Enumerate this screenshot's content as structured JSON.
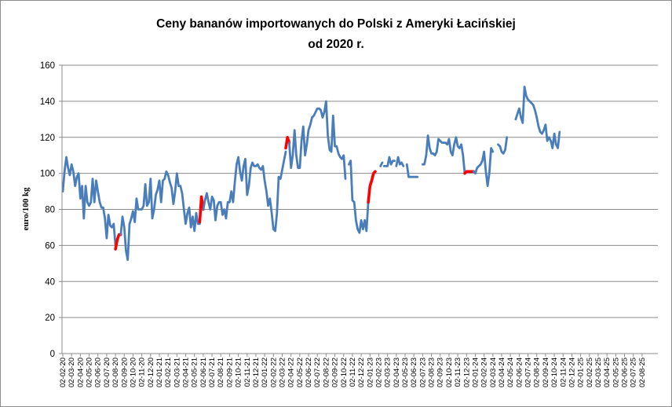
{
  "chart_data": {
    "type": "line",
    "title_lines": [
      "Ceny bananów importowanych do Polski z Ameryki Łacińskiej",
      "od 2020 r."
    ],
    "ylabel": "euro/100 kg",
    "xlabel": "",
    "ylim": [
      0,
      160
    ],
    "yticks": [
      0,
      20,
      40,
      60,
      80,
      100,
      120,
      140,
      160
    ],
    "grid": "horizontal",
    "legend": "none",
    "colors": {
      "line": "#4a7ebb",
      "highlight": "#ff0000",
      "grid": "#8c8c8c",
      "axis": "#8c8c8c"
    },
    "x_tick_labels": [
      "02-02-20",
      "02-03-20",
      "02-04-20",
      "02-05-20",
      "02-06-20",
      "02-07-20",
      "02-08-20",
      "02-09-20",
      "02-10-20",
      "02-11-20",
      "02-12-20",
      "02-01-21",
      "02-02-21",
      "02-03-21",
      "02-04-21",
      "02-05-21",
      "02-06-21",
      "02-07-21",
      "02-08-21",
      "02-09-21",
      "02-10-21",
      "02-11-21",
      "02-12-21",
      "02-01-22",
      "02-02-22",
      "02-03-22",
      "02-04-22",
      "02-05-22",
      "02-06-22",
      "02-07-22",
      "02-08-22",
      "02-09-22",
      "02-10-22",
      "02-11-22",
      "02-12-22",
      "02-01-23",
      "02-02-23",
      "02-03-23",
      "02-04-23",
      "02-05-23",
      "02-06-23",
      "02-07-23",
      "02-08-23",
      "02-09-23",
      "02-10-23",
      "02-11-23",
      "02-12-23",
      "02-01-24",
      "02-02-24",
      "02-03-24",
      "02-04-24",
      "02-05-24",
      "02-06-24",
      "02-07-24",
      "02-08-24",
      "02-09-24",
      "02-10-24",
      "02-11-24",
      "02-12-24",
      "02-01-25",
      "02-02-25",
      "02-03-25",
      "02-04-25",
      "02-05-25",
      "02-06-25",
      "02-07-25",
      "02-08-25"
    ],
    "segments": [
      {
        "color": "blue",
        "points": [
          [
            0,
            90
          ],
          [
            0.2,
            101
          ],
          [
            0.4,
            109
          ],
          [
            0.6,
            103
          ],
          [
            0.8,
            99
          ],
          [
            1.0,
            105
          ],
          [
            1.2,
            101
          ],
          [
            1.4,
            93
          ],
          [
            1.6,
            98
          ],
          [
            1.8,
            100
          ],
          [
            2.0,
            86
          ],
          [
            2.2,
            93
          ],
          [
            2.4,
            75
          ],
          [
            2.6,
            93
          ],
          [
            2.8,
            84
          ],
          [
            3.0,
            82
          ],
          [
            3.2,
            84
          ],
          [
            3.4,
            97
          ],
          [
            3.6,
            84
          ],
          [
            3.8,
            96
          ],
          [
            4.0,
            90
          ],
          [
            4.2,
            84
          ],
          [
            4.4,
            81
          ],
          [
            4.6,
            81
          ],
          [
            4.8,
            75
          ],
          [
            5.0,
            64
          ],
          [
            5.2,
            77
          ],
          [
            5.4,
            71
          ],
          [
            5.6,
            70
          ],
          [
            5.8,
            72
          ],
          [
            6.0,
            60
          ]
        ]
      },
      {
        "color": "red",
        "points": [
          [
            6.0,
            58
          ],
          [
            6.2,
            63
          ],
          [
            6.4,
            66
          ],
          [
            6.6,
            66
          ]
        ]
      },
      {
        "color": "blue",
        "points": [
          [
            6.6,
            66
          ],
          [
            6.8,
            76
          ],
          [
            7.0,
            70
          ],
          [
            7.2,
            57
          ],
          [
            7.4,
            52
          ],
          [
            7.6,
            72
          ],
          [
            7.8,
            75
          ],
          [
            8.0,
            79
          ],
          [
            8.2,
            73
          ],
          [
            8.4,
            86
          ],
          [
            8.6,
            80
          ],
          [
            8.8,
            80
          ],
          [
            9.0,
            80
          ],
          [
            9.2,
            82
          ],
          [
            9.4,
            94
          ],
          [
            9.6,
            82
          ],
          [
            9.8,
            84
          ],
          [
            10.0,
            97
          ],
          [
            10.2,
            75
          ],
          [
            10.4,
            80
          ],
          [
            10.6,
            88
          ],
          [
            10.8,
            91
          ],
          [
            11.0,
            96
          ],
          [
            11.2,
            84
          ],
          [
            11.4,
            96
          ],
          [
            11.6,
            97
          ],
          [
            11.8,
            101
          ],
          [
            12.0,
            99
          ],
          [
            12.2,
            95
          ],
          [
            12.4,
            92
          ],
          [
            12.6,
            83
          ],
          [
            12.8,
            90
          ],
          [
            13.0,
            100
          ],
          [
            13.2,
            93
          ],
          [
            13.4,
            93
          ],
          [
            13.6,
            89
          ],
          [
            13.8,
            80
          ],
          [
            14.0,
            72
          ],
          [
            14.2,
            78
          ],
          [
            14.4,
            81
          ],
          [
            14.6,
            70
          ],
          [
            14.8,
            76
          ],
          [
            15.0,
            68
          ],
          [
            15.2,
            78
          ],
          [
            15.4,
            72
          ],
          [
            15.6,
            72
          ]
        ]
      },
      {
        "color": "red",
        "points": [
          [
            15.6,
            73
          ],
          [
            15.8,
            87
          ],
          [
            16.0,
            80
          ]
        ]
      },
      {
        "color": "blue",
        "points": [
          [
            16.0,
            80
          ],
          [
            16.2,
            85
          ],
          [
            16.4,
            89
          ],
          [
            16.6,
            84
          ],
          [
            16.8,
            80
          ],
          [
            17.0,
            87
          ],
          [
            17.2,
            85
          ],
          [
            17.4,
            74
          ],
          [
            17.6,
            82
          ],
          [
            17.8,
            84
          ],
          [
            18.0,
            84
          ],
          [
            18.2,
            77
          ],
          [
            18.4,
            80
          ],
          [
            18.6,
            75
          ],
          [
            18.8,
            84
          ],
          [
            19.0,
            84
          ],
          [
            19.2,
            90
          ],
          [
            19.4,
            84
          ],
          [
            19.6,
            95
          ],
          [
            19.8,
            105
          ],
          [
            20.0,
            109
          ],
          [
            20.2,
            101
          ],
          [
            20.4,
            96
          ],
          [
            20.6,
            104
          ],
          [
            20.8,
            108
          ],
          [
            21.0,
            88
          ],
          [
            21.2,
            93
          ],
          [
            21.4,
            103
          ],
          [
            21.6,
            106
          ],
          [
            21.8,
            104
          ],
          [
            22.0,
            104
          ],
          [
            22.2,
            105
          ],
          [
            22.4,
            103
          ],
          [
            22.6,
            102
          ],
          [
            22.8,
            104
          ],
          [
            23.0,
            96
          ],
          [
            23.2,
            90
          ],
          [
            23.4,
            82
          ],
          [
            23.6,
            86
          ],
          [
            23.8,
            78
          ],
          [
            24.0,
            69
          ],
          [
            24.2,
            68
          ],
          [
            24.4,
            78
          ],
          [
            24.6,
            98
          ],
          [
            24.8,
            97
          ],
          [
            25.0,
            102
          ],
          [
            25.2,
            107
          ],
          [
            25.4,
            112
          ]
        ]
      },
      {
        "color": "red",
        "points": [
          [
            25.4,
            114
          ],
          [
            25.6,
            120
          ],
          [
            25.8,
            117
          ]
        ]
      },
      {
        "color": "blue",
        "points": [
          [
            25.8,
            117
          ],
          [
            26.0,
            103
          ],
          [
            26.2,
            110
          ],
          [
            26.4,
            124
          ],
          [
            26.6,
            110
          ],
          [
            26.8,
            103
          ],
          [
            27.0,
            103
          ],
          [
            27.2,
            118
          ],
          [
            27.4,
            126
          ],
          [
            27.6,
            110
          ],
          [
            27.8,
            116
          ],
          [
            28.0,
            124
          ],
          [
            28.2,
            127
          ],
          [
            28.4,
            131
          ],
          [
            28.6,
            132
          ],
          [
            28.8,
            134
          ],
          [
            29.0,
            136
          ],
          [
            29.2,
            136
          ],
          [
            29.4,
            135
          ],
          [
            29.6,
            131
          ],
          [
            29.8,
            134
          ],
          [
            30.0,
            140
          ],
          [
            30.2,
            121
          ],
          [
            30.4,
            113
          ],
          [
            30.6,
            112
          ],
          [
            30.8,
            132
          ],
          [
            31.0,
            115
          ],
          [
            31.2,
            115
          ],
          [
            31.4,
            111
          ],
          [
            31.6,
            109
          ],
          [
            31.8,
            108
          ],
          [
            32.0,
            110
          ],
          [
            32.2,
            97
          ]
        ]
      },
      {
        "color": "blue",
        "points": [
          [
            32.6,
            105
          ],
          [
            32.8,
            107
          ],
          [
            33.0,
            85
          ],
          [
            33.2,
            84
          ],
          [
            33.4,
            74
          ],
          [
            33.6,
            69
          ],
          [
            33.8,
            67
          ],
          [
            34.0,
            74
          ],
          [
            34.2,
            69
          ],
          [
            34.4,
            74
          ],
          [
            34.6,
            68
          ],
          [
            34.8,
            84
          ]
        ]
      },
      {
        "color": "red",
        "points": [
          [
            34.8,
            84
          ],
          [
            35.0,
            93
          ],
          [
            35.2,
            96
          ],
          [
            35.4,
            100
          ],
          [
            35.6,
            101
          ]
        ]
      },
      {
        "color": "blue",
        "points": [
          [
            36.2,
            104
          ],
          [
            36.4,
            106
          ]
        ]
      },
      {
        "color": "blue",
        "points": [
          [
            36.6,
            104
          ],
          [
            36.8,
            104
          ],
          [
            37.0,
            104
          ],
          [
            37.2,
            109
          ],
          [
            37.4,
            105
          ],
          [
            37.6,
            107
          ],
          [
            37.8,
            107
          ]
        ]
      },
      {
        "color": "blue",
        "points": [
          [
            38.0,
            104
          ],
          [
            38.2,
            109
          ],
          [
            38.4,
            105
          ],
          [
            38.6,
            106
          ],
          [
            38.8,
            104
          ]
        ]
      },
      {
        "color": "blue",
        "points": [
          [
            39.2,
            105
          ],
          [
            39.4,
            98
          ],
          [
            39.6,
            98
          ],
          [
            39.8,
            98
          ],
          [
            40.0,
            98
          ],
          [
            40.2,
            98
          ],
          [
            40.4,
            98
          ]
        ]
      },
      {
        "color": "blue",
        "points": [
          [
            41.0,
            105
          ],
          [
            41.2,
            105
          ],
          [
            41.4,
            110
          ],
          [
            41.6,
            121
          ],
          [
            41.8,
            114
          ],
          [
            42.0,
            111
          ],
          [
            42.2,
            111
          ],
          [
            42.4,
            110
          ],
          [
            42.6,
            112
          ],
          [
            42.8,
            119
          ],
          [
            43.0,
            118
          ],
          [
            43.2,
            117
          ],
          [
            43.4,
            117
          ],
          [
            43.6,
            117
          ],
          [
            43.8,
            116
          ],
          [
            44.0,
            119
          ],
          [
            44.2,
            112
          ],
          [
            44.4,
            110
          ],
          [
            44.6,
            116
          ],
          [
            44.8,
            120
          ],
          [
            45.0,
            115
          ],
          [
            45.2,
            114
          ],
          [
            45.4,
            116
          ],
          [
            45.6,
            110
          ],
          [
            45.8,
            100
          ]
        ]
      },
      {
        "color": "red",
        "points": [
          [
            45.8,
            100
          ],
          [
            46.0,
            101
          ],
          [
            46.2,
            101
          ],
          [
            46.4,
            101
          ],
          [
            46.6,
            101
          ],
          [
            46.8,
            101
          ]
        ]
      },
      {
        "color": "blue",
        "points": [
          [
            46.8,
            101
          ],
          [
            47.0,
            100
          ],
          [
            47.2,
            103
          ],
          [
            47.4,
            104
          ],
          [
            47.6,
            105
          ],
          [
            47.8,
            107
          ],
          [
            48.0,
            112
          ],
          [
            48.2,
            101
          ],
          [
            48.4,
            93
          ],
          [
            48.6,
            100
          ],
          [
            48.8,
            114
          ],
          [
            49.0,
            112
          ]
        ]
      },
      {
        "color": "blue",
        "points": [
          [
            49.6,
            116
          ],
          [
            49.8,
            115
          ],
          [
            50.0,
            112
          ],
          [
            50.2,
            111
          ],
          [
            50.4,
            113
          ],
          [
            50.6,
            120
          ]
        ]
      },
      {
        "color": "blue",
        "points": [
          [
            51.6,
            130
          ],
          [
            51.8,
            133
          ],
          [
            52.0,
            136
          ],
          [
            52.2,
            131
          ],
          [
            52.4,
            128
          ],
          [
            52.6,
            148
          ],
          [
            52.8,
            143
          ],
          [
            53.0,
            141
          ],
          [
            53.2,
            140
          ],
          [
            53.4,
            139
          ],
          [
            53.6,
            138
          ],
          [
            53.8,
            135
          ],
          [
            54.0,
            131
          ],
          [
            54.2,
            126
          ],
          [
            54.4,
            123
          ],
          [
            54.6,
            122
          ],
          [
            54.8,
            124
          ],
          [
            55.0,
            127
          ],
          [
            55.2,
            118
          ],
          [
            55.4,
            120
          ],
          [
            55.6,
            118
          ],
          [
            55.8,
            114
          ],
          [
            56.0,
            122
          ],
          [
            56.2,
            116
          ],
          [
            56.4,
            114
          ],
          [
            56.6,
            123
          ]
        ]
      }
    ]
  }
}
